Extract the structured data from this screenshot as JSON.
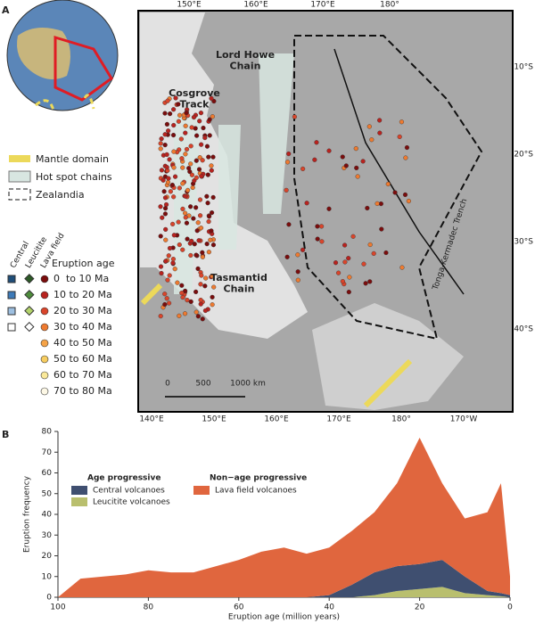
{
  "panels": [
    "A",
    "B"
  ],
  "map": {
    "lon_ticks_top": [
      "150°E",
      "160°E",
      "170°E",
      "180°"
    ],
    "lon_ticks_bottom": [
      "140°E",
      "150°E",
      "160°E",
      "170°E",
      "180°",
      "170°W"
    ],
    "lat_ticks": [
      "10°S",
      "20°S",
      "30°S",
      "40°S"
    ],
    "labels": [
      "Lord Howe\nChain",
      "Cosgrove\nTrack",
      "Tasmantid\nChain",
      "Tonga-Kermadec Trench"
    ],
    "legend": [
      "Mantle domain",
      "Hot spot chains",
      "Zealandia"
    ],
    "column_heads": [
      "Central",
      "Leucitite",
      "Lava field"
    ],
    "age_title": "Eruption age",
    "age_rows": [
      "0  to 10 Ma",
      "10 to 20 Ma",
      "20 to 30 Ma",
      "30 to 40 Ma",
      "40 to 50 Ma",
      "50 to 60 Ma",
      "60 to 70 Ma",
      "70 to 80 Ma"
    ],
    "age_colors": [
      "#7a0d0d",
      "#b8231f",
      "#d9452b",
      "#ee7a30",
      "#f5a347",
      "#f7cd60",
      "#fae99a",
      "#fdf8e6"
    ],
    "central_colors": [
      "#1f4e79",
      "#3d7ab8",
      "#9dbfe0",
      "#ffffff"
    ],
    "leucitite_colors": [
      "#2d5a27",
      "#4e8c3c",
      "#b3d36b",
      "#ffffff"
    ],
    "scale_labels": [
      "0",
      "500",
      "1000 km"
    ]
  },
  "chart_data": {
    "type": "stacked_area",
    "xlabel": "Eruption age (million years)",
    "ylabel": "Eruption frequency",
    "legend_titles": [
      "Age progressive",
      "Non−age progressive"
    ],
    "x": [
      100,
      95,
      90,
      85,
      80,
      75,
      70,
      65,
      60,
      55,
      50,
      45,
      40,
      35,
      30,
      25,
      20,
      15,
      10,
      5,
      2,
      0
    ],
    "series": [
      {
        "name": "Leucitite volcanoes",
        "color": "#b9bf6e",
        "values": [
          0,
          0,
          0,
          0,
          0,
          0,
          0,
          0,
          0,
          0,
          0,
          0,
          0,
          0,
          1,
          3,
          4,
          5,
          2,
          1,
          0.5,
          0
        ]
      },
      {
        "name": "Central volcanoes",
        "color": "#3f4f70",
        "values": [
          0,
          0,
          0,
          0,
          0,
          0,
          0,
          0,
          0,
          0,
          0,
          0,
          1,
          6,
          11,
          12,
          12,
          13,
          8,
          2,
          1.5,
          1
        ]
      },
      {
        "name": "Lava field volcanoes",
        "color": "#e0663e",
        "values": [
          0,
          9,
          10,
          11,
          13,
          12,
          12,
          15,
          18,
          22,
          24,
          21,
          23,
          26,
          29,
          40,
          61,
          37,
          28,
          38,
          53,
          9
        ]
      }
    ],
    "xlim": [
      100,
      0
    ],
    "ylim": [
      0,
      80
    ],
    "xticks": [
      100,
      80,
      60,
      40,
      20,
      0
    ],
    "yticks": [
      0,
      10,
      20,
      30,
      40,
      50,
      60,
      70,
      80
    ]
  }
}
